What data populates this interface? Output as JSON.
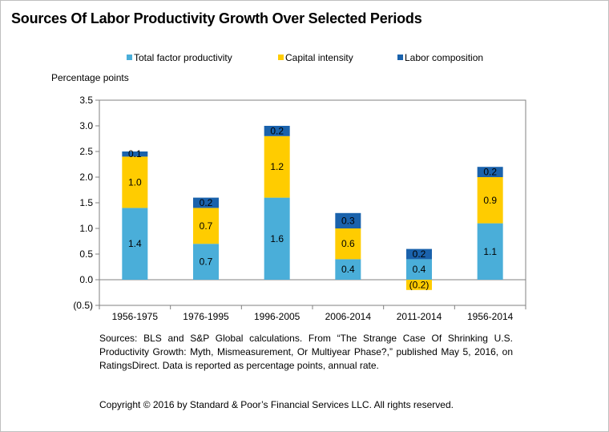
{
  "title": "Sources Of Labor Productivity Growth Over Selected Periods",
  "chart_data": {
    "type": "bar",
    "stacked": true,
    "ylabel": "Percentage points",
    "ylim": [
      -0.5,
      3.5
    ],
    "yticks": [
      3.5,
      3.0,
      2.5,
      2.0,
      1.5,
      1.0,
      0.5,
      0.0,
      -0.5
    ],
    "ytick_labels": [
      "3.5",
      "3.0",
      "2.5",
      "2.0",
      "1.5",
      "1.0",
      "0.5",
      "0.0",
      "(0.5)"
    ],
    "grid": false,
    "legend_position": "top",
    "categories": [
      "1956-1975",
      "1976-1995",
      "1996-2005",
      "2006-2014",
      "2011-2014",
      "1956-2014"
    ],
    "series": [
      {
        "name": "Total factor productivity",
        "color": "#4aaed9",
        "values": [
          1.4,
          0.7,
          1.6,
          0.4,
          0.4,
          1.1
        ],
        "labels": [
          "1.4",
          "0.7",
          "1.6",
          "0.4",
          "0.4",
          "1.1"
        ]
      },
      {
        "name": "Capital intensity",
        "color": "#ffcc00",
        "values": [
          1.0,
          0.7,
          1.2,
          0.6,
          -0.2,
          0.9
        ],
        "labels": [
          "1.0",
          "0.7",
          "1.2",
          "0.6",
          "(0.2)",
          "0.9"
        ]
      },
      {
        "name": "Labor composition",
        "color": "#1a62ac",
        "values": [
          0.1,
          0.2,
          0.2,
          0.3,
          0.2,
          0.2
        ],
        "labels": [
          "0.1",
          "0.2",
          "0.2",
          "0.3",
          "0.2",
          "0.2"
        ]
      }
    ]
  },
  "source": "Sources: BLS and S&P Global calculations. From “The Strange Case Of Shrinking U.S. Productivity Growth: Myth, Mismeasurement, Or Multiyear Phase?,” published May 5, 2016, on RatingsDirect. Data is reported as percentage points, annual rate.",
  "copyright": "Copyright © 2016 by Standard & Poor’s Financial Services LLC. All rights reserved."
}
